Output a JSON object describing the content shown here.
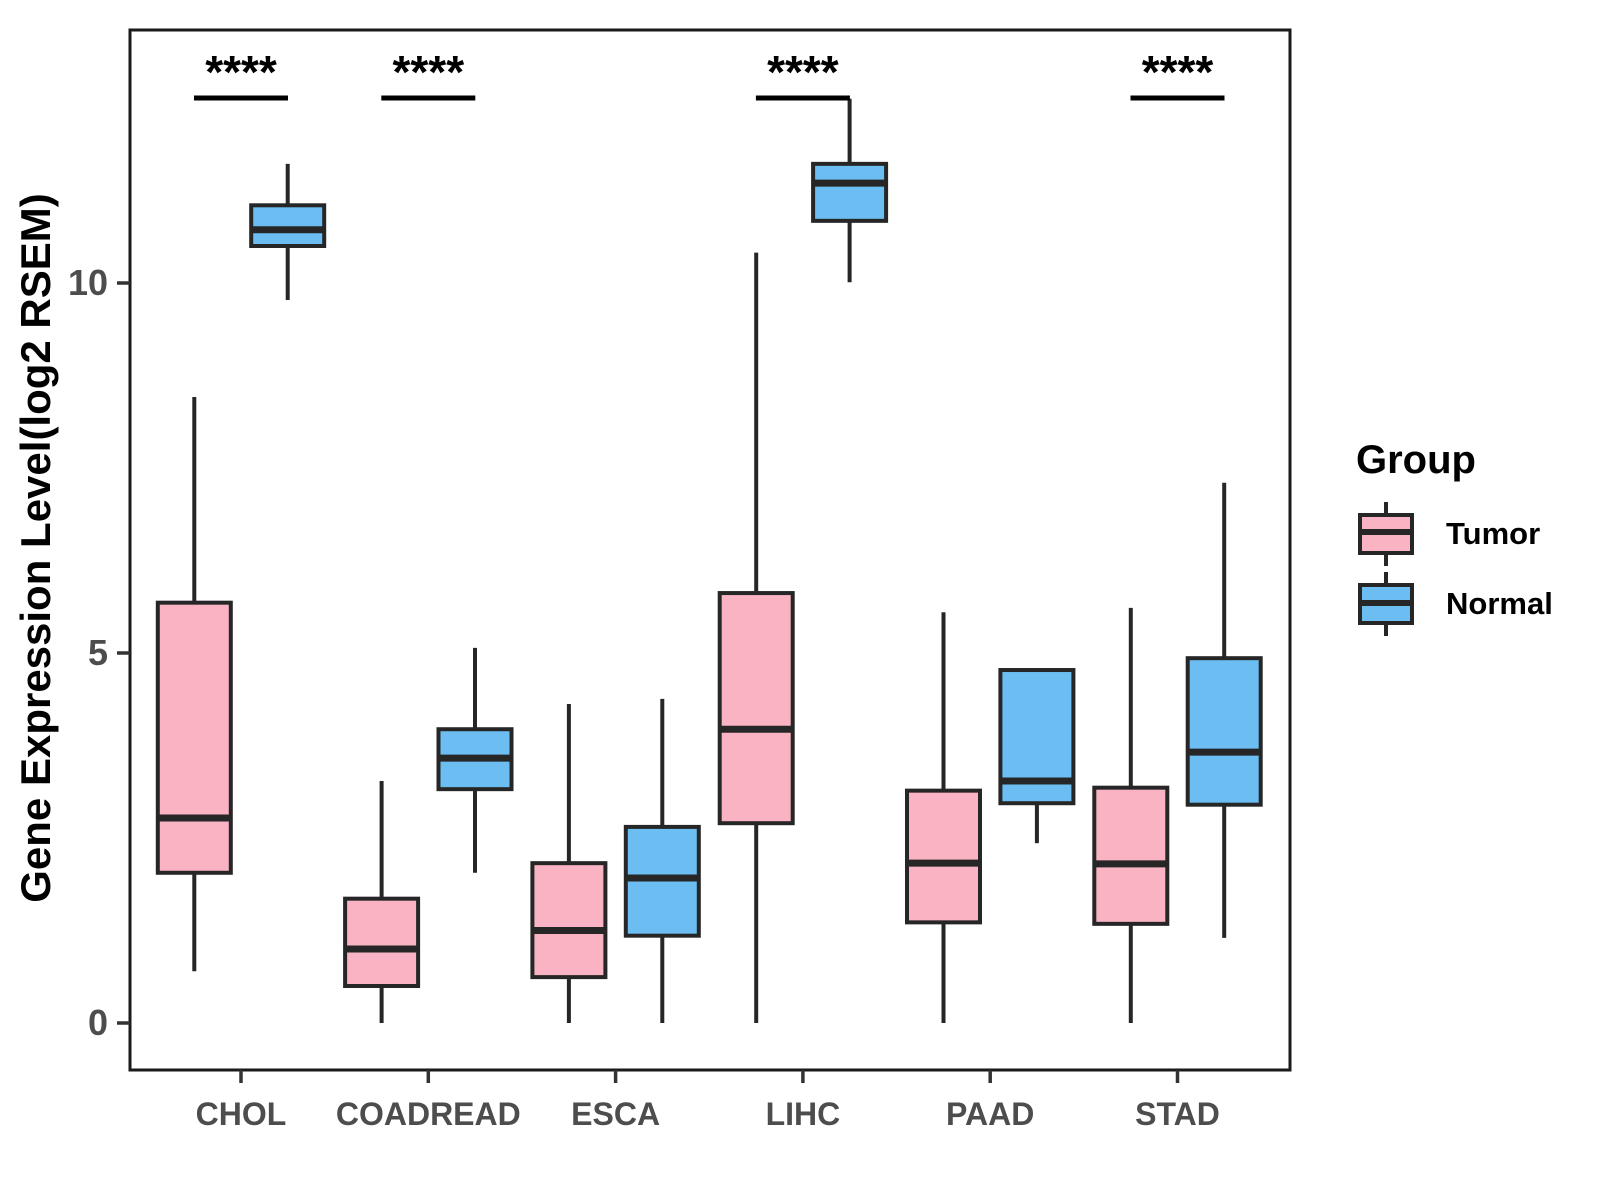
{
  "chart_data": {
    "type": "grouped_boxplot",
    "title": "",
    "xlabel": "",
    "ylabel": "Gene Expression Level(log2 RSEM)",
    "yticks": [
      0,
      5,
      10
    ],
    "ylim": [
      -0.7,
      13.4
    ],
    "grid": false,
    "legend_position": "right",
    "categories": [
      "CHOL",
      "COADREAD",
      "ESCA",
      "LIHC",
      "PAAD",
      "STAD"
    ],
    "legend": {
      "title": "Group",
      "entries": [
        {
          "label": "Tumor",
          "color": "#F9B3C3"
        },
        {
          "label": "Normal",
          "color": "#6CBDF2"
        }
      ]
    },
    "significance": [
      {
        "category": "CHOL",
        "label": "****"
      },
      {
        "category": "COADREAD",
        "label": "****"
      },
      {
        "category": "LIHC",
        "label": "****"
      },
      {
        "category": "STAD",
        "label": "****"
      }
    ],
    "series": [
      {
        "name": "Tumor",
        "color": "#F9B3C3",
        "boxes": [
          {
            "category": "CHOL",
            "whisker_low": 0.7,
            "q1": 2.03,
            "median": 2.77,
            "q3": 5.68,
            "whisker_high": 8.46
          },
          {
            "category": "COADREAD",
            "whisker_low": 0.0,
            "q1": 0.5,
            "median": 1.0,
            "q3": 1.68,
            "whisker_high": 3.27
          },
          {
            "category": "ESCA",
            "whisker_low": 0.0,
            "q1": 0.62,
            "median": 1.25,
            "q3": 2.16,
            "whisker_high": 4.31
          },
          {
            "category": "LIHC",
            "whisker_low": 0.0,
            "q1": 2.7,
            "median": 3.97,
            "q3": 5.81,
            "whisker_high": 10.41
          },
          {
            "category": "PAAD",
            "whisker_low": 0.0,
            "q1": 1.36,
            "median": 2.16,
            "q3": 3.14,
            "whisker_high": 5.55
          },
          {
            "category": "STAD",
            "whisker_low": 0.0,
            "q1": 1.34,
            "median": 2.15,
            "q3": 3.18,
            "whisker_high": 5.61
          }
        ]
      },
      {
        "name": "Normal",
        "color": "#6CBDF2",
        "boxes": [
          {
            "category": "CHOL",
            "whisker_low": 9.77,
            "q1": 10.5,
            "median": 10.72,
            "q3": 11.05,
            "whisker_high": 11.61
          },
          {
            "category": "COADREAD",
            "whisker_low": 2.03,
            "q1": 3.16,
            "median": 3.58,
            "q3": 3.97,
            "whisker_high": 5.07
          },
          {
            "category": "ESCA",
            "whisker_low": 0.0,
            "q1": 1.18,
            "median": 1.96,
            "q3": 2.65,
            "whisker_high": 4.38
          },
          {
            "category": "LIHC",
            "whisker_low": 10.01,
            "q1": 10.84,
            "median": 11.35,
            "q3": 11.61,
            "whisker_high": 12.49
          },
          {
            "category": "PAAD",
            "whisker_low": 2.43,
            "q1": 2.97,
            "median": 3.27,
            "q3": 4.77,
            "whisker_high": 4.77
          },
          {
            "category": "STAD",
            "whisker_low": 1.15,
            "q1": 2.95,
            "median": 3.66,
            "q3": 4.93,
            "whisker_high": 7.3
          }
        ]
      }
    ]
  }
}
